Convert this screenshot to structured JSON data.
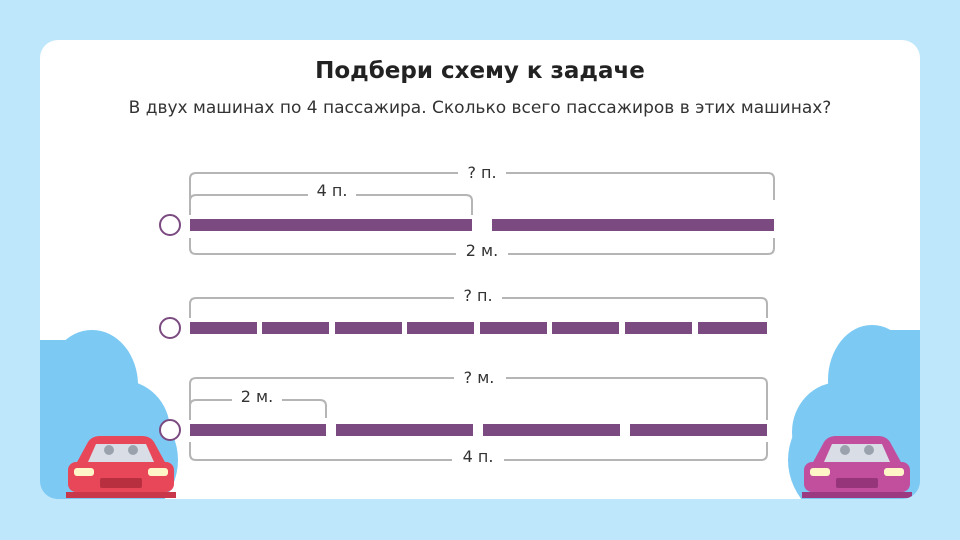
{
  "title": "Подбери схему к задаче",
  "question": "В двух машинах по 4 пассажира. Сколько всего пассажиров в этих машинах?",
  "options": [
    {
      "top_label": "? п.",
      "part_label": "4 п.",
      "bottom_label": "2 м.",
      "segments": 2
    },
    {
      "top_label": "? п.",
      "segments": 8
    },
    {
      "top_label": "? м.",
      "part_label": "2 м.",
      "bottom_label": "4 п.",
      "segments": 4
    }
  ],
  "colors": {
    "background": "#bfe7fb",
    "segment": "#7b4a80",
    "radio": "#7b4a80",
    "bracket": "#b5b5b5",
    "red_car": "#e8475a",
    "pink_car": "#c14f9e",
    "bush": "#7cc9f4"
  },
  "icons": [
    "red-car-icon",
    "pink-car-icon",
    "bush-left",
    "bush-right"
  ]
}
